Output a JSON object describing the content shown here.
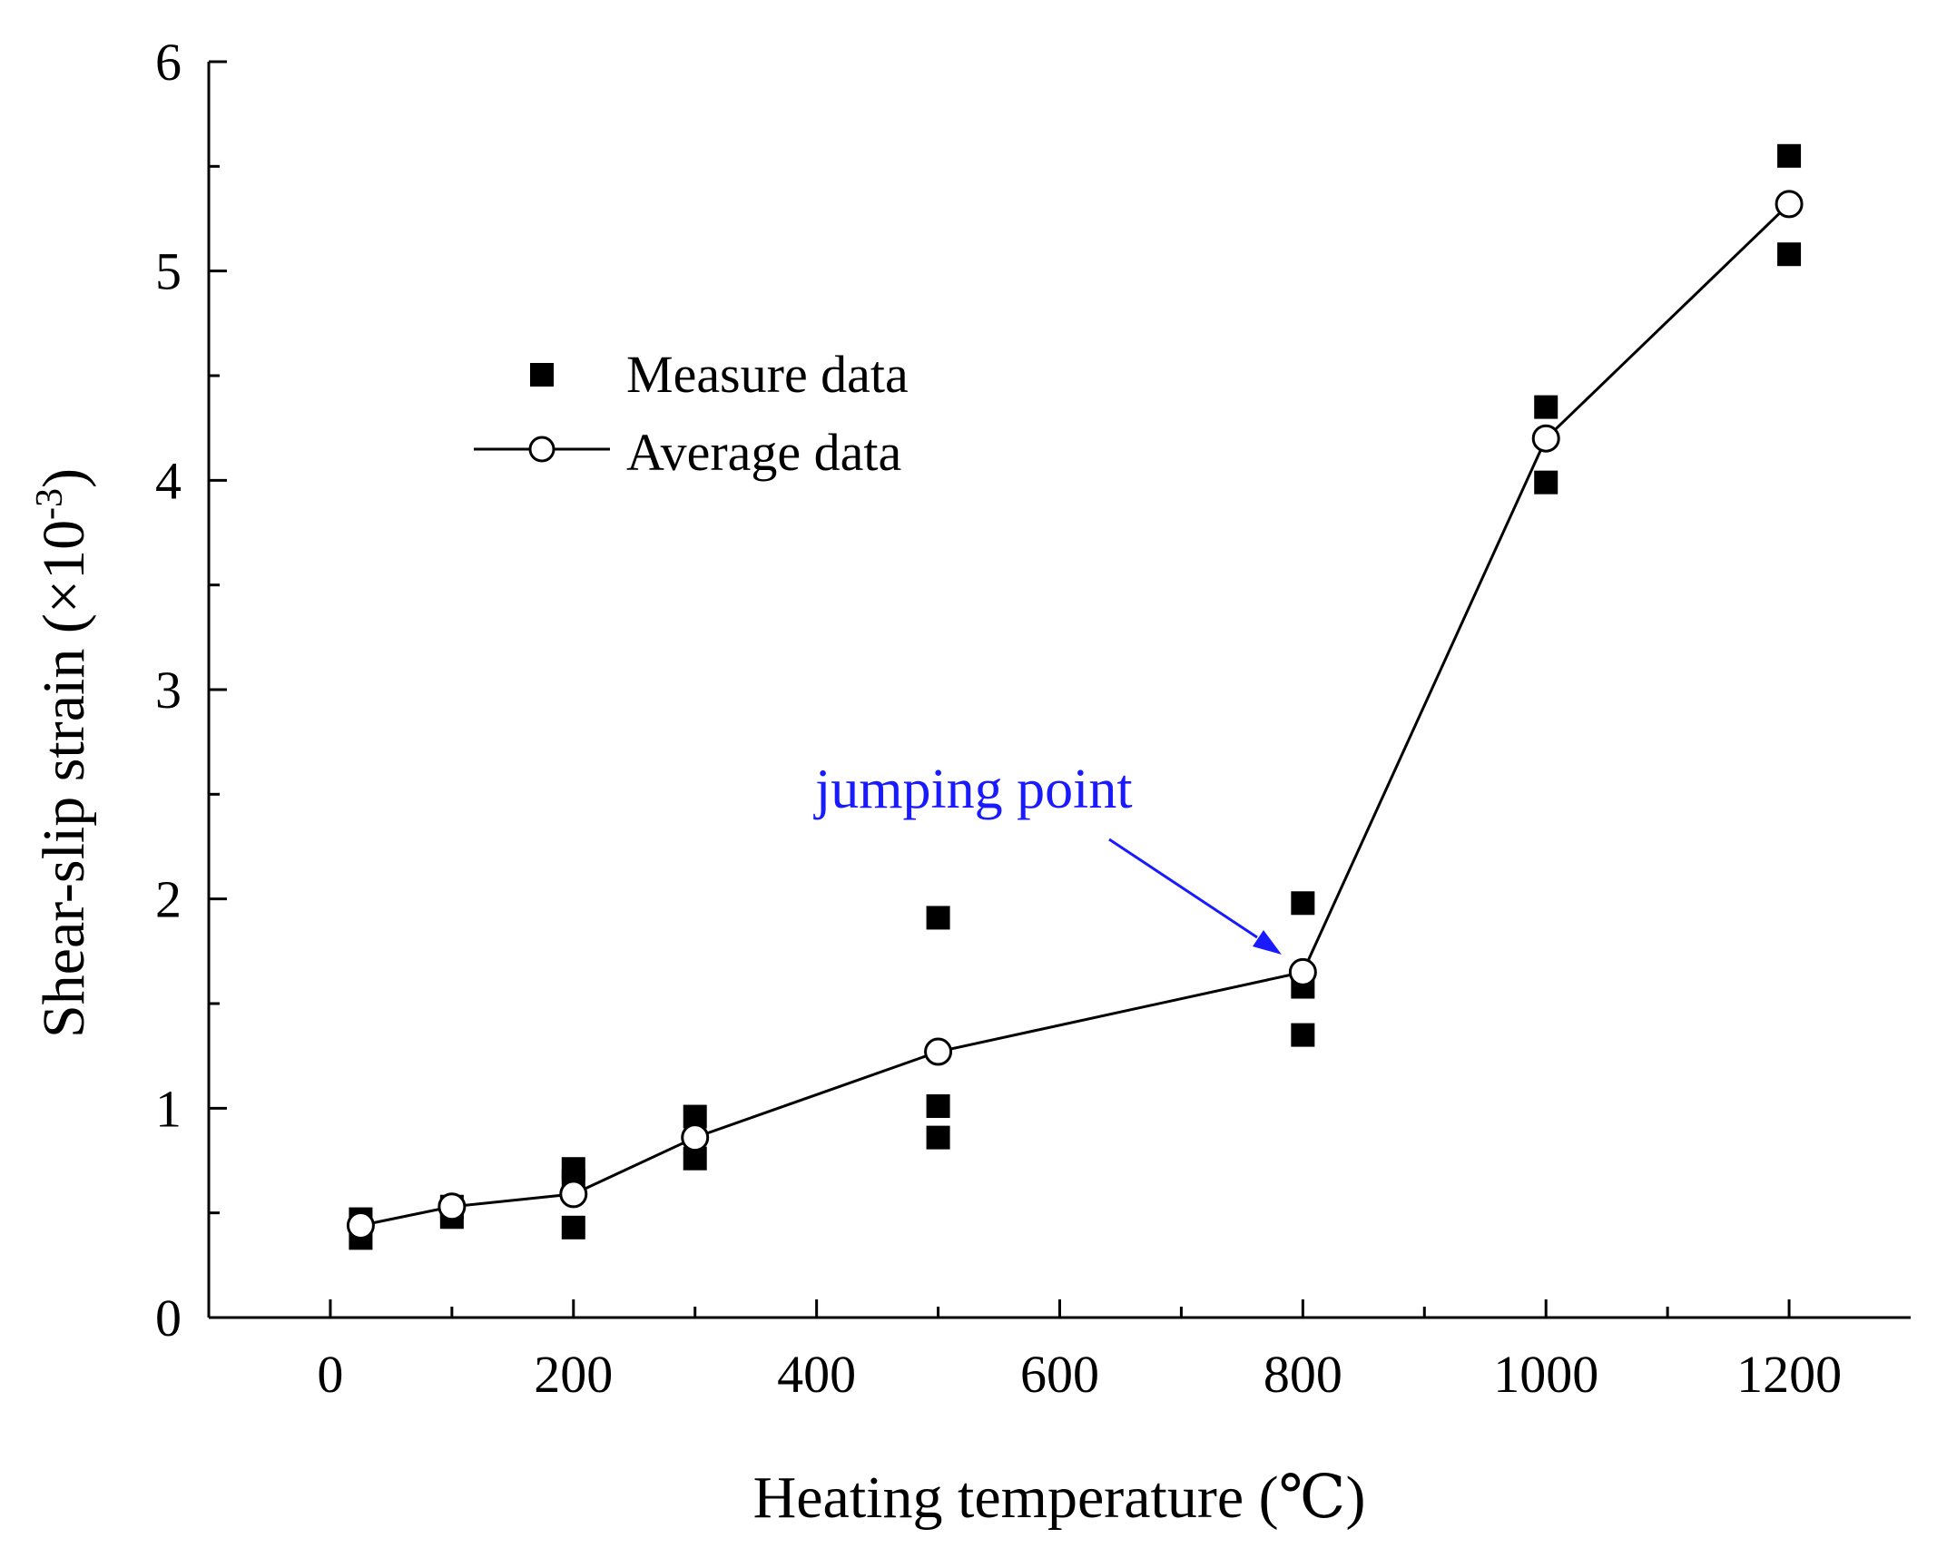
{
  "chart_data": {
    "type": "scatter",
    "xlabel": "Heating temperature (℃)",
    "ylabel_main": "Shear-slip strain (×10",
    "ylabel_exp": "-3",
    "ylabel_close": ")",
    "xlim": [
      -100,
      1300
    ],
    "ylim": [
      0,
      6
    ],
    "xticks": [
      0,
      200,
      400,
      600,
      800,
      1000,
      1200
    ],
    "xminor": [
      100,
      300,
      500,
      700,
      900,
      1100
    ],
    "yticks": [
      0,
      1,
      2,
      3,
      4,
      5,
      6
    ],
    "yminor": [
      0.5,
      1.5,
      2.5,
      3.5,
      4.5,
      5.5
    ],
    "series": [
      {
        "name": "Measure data",
        "marker": "filled-square",
        "points": [
          [
            25,
            0.38
          ],
          [
            25,
            0.47
          ],
          [
            100,
            0.48
          ],
          [
            100,
            0.53
          ],
          [
            200,
            0.43
          ],
          [
            200,
            0.65
          ],
          [
            200,
            0.71
          ],
          [
            300,
            0.76
          ],
          [
            300,
            0.96
          ],
          [
            500,
            0.86
          ],
          [
            500,
            1.01
          ],
          [
            500,
            1.91
          ],
          [
            800,
            1.35
          ],
          [
            800,
            1.58
          ],
          [
            800,
            1.98
          ],
          [
            1000,
            3.99
          ],
          [
            1000,
            4.35
          ],
          [
            1200,
            5.08
          ],
          [
            1200,
            5.55
          ]
        ]
      },
      {
        "name": "Average data",
        "marker": "open-circle-line",
        "points": [
          [
            25,
            0.44
          ],
          [
            100,
            0.53
          ],
          [
            200,
            0.59
          ],
          [
            300,
            0.86
          ],
          [
            500,
            1.27
          ],
          [
            800,
            1.65
          ],
          [
            1000,
            4.2
          ],
          [
            1200,
            5.32
          ]
        ]
      }
    ],
    "annotation": {
      "text": "jumping point",
      "color": "#1a1aff",
      "target": [
        800,
        1.65
      ]
    }
  }
}
